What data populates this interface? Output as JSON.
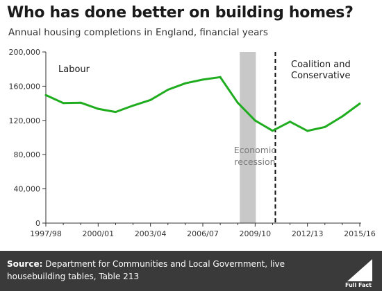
{
  "header": {
    "title": "Who has done better on building homes?",
    "subtitle": "Annual housing completions in England, financial years"
  },
  "footer": {
    "source_label": "Source:",
    "source_text": "Department for Communities and Local Government, live housebuilding tables, Table 213",
    "logo_text": "Full Fact"
  },
  "colors": {
    "line": "#1fad1f",
    "recession": "#c8c8c8",
    "axis": "#333333",
    "footer_bg": "#3a3a3a"
  },
  "chart_data": {
    "type": "line",
    "title": "Who has done better on building homes?",
    "subtitle": "Annual housing completions in England, financial years",
    "x": [
      "1997/98",
      "1998/99",
      "1999/00",
      "2000/01",
      "2001/02",
      "2002/03",
      "2003/04",
      "2004/05",
      "2005/06",
      "2006/07",
      "2007/08",
      "2008/09",
      "2009/10",
      "2010/11",
      "2011/12",
      "2012/13",
      "2013/14",
      "2014/15",
      "2015/16"
    ],
    "x_tick_labels": [
      "1997/98",
      "2000/01",
      "2003/04",
      "2006/07",
      "2009/10",
      "2012/13",
      "2015/16"
    ],
    "series": [
      {
        "values": [
          149600,
          140300,
          140700,
          133500,
          129900,
          137300,
          143900,
          155900,
          163400,
          167700,
          170600,
          140700,
          119900,
          107900,
          118500,
          107800,
          112300,
          124700,
          139700
        ]
      }
    ],
    "ylim": [
      0,
      200000
    ],
    "y_ticks": [
      0,
      40000,
      80000,
      120000,
      160000,
      200000
    ],
    "y_tick_labels": [
      "0",
      "40,000",
      "80,000",
      "120,000",
      "160,000",
      "200,000"
    ],
    "recession": {
      "from": "2008/09",
      "to": "2009/10",
      "label_lines": [
        "Economic",
        "recession"
      ]
    },
    "government_change": {
      "at": "2010/11",
      "left_label": "Labour",
      "right_label_lines": [
        "Coalition and",
        "Conservative"
      ]
    },
    "grid": false,
    "legend": "none"
  }
}
